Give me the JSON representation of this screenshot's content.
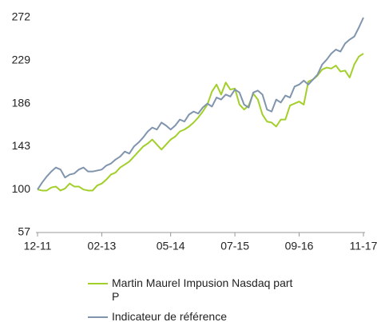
{
  "chart_data": {
    "type": "line",
    "categories": [
      "12-11",
      null,
      null,
      null,
      null,
      null,
      null,
      null,
      null,
      null,
      null,
      null,
      null,
      null,
      "02-13",
      null,
      null,
      null,
      null,
      null,
      null,
      null,
      null,
      null,
      null,
      null,
      null,
      null,
      null,
      "05-14",
      null,
      null,
      null,
      null,
      null,
      null,
      null,
      null,
      null,
      null,
      null,
      null,
      null,
      "07-15",
      null,
      null,
      null,
      null,
      null,
      null,
      null,
      null,
      null,
      null,
      null,
      null,
      null,
      "09-16",
      null,
      null,
      null,
      null,
      null,
      null,
      null,
      null,
      null,
      null,
      null,
      null,
      null,
      "11-17"
    ],
    "series": [
      {
        "name": "Martin Maurel Impusion Nasdaq part P",
        "color": "#a2cf2a",
        "values": [
          100,
          99,
          99,
          102,
          103,
          99,
          101,
          106,
          103,
          103,
          100,
          99,
          99,
          104,
          106,
          110,
          115,
          117,
          122,
          125,
          128,
          133,
          138,
          143,
          146,
          150,
          145,
          140,
          145,
          150,
          153,
          158,
          160,
          163,
          167,
          172,
          178,
          185,
          198,
          205,
          195,
          207,
          200,
          201,
          185,
          180,
          184,
          196,
          190,
          175,
          168,
          167,
          163,
          170,
          170,
          184,
          186,
          188,
          185,
          208,
          210,
          214,
          220,
          222,
          221,
          224,
          218,
          219,
          212,
          225,
          233,
          236
        ]
      },
      {
        "name": "Indicateur de référence",
        "color": "#8095ad",
        "values": [
          100,
          107,
          113,
          118,
          122,
          120,
          112,
          115,
          116,
          120,
          122,
          118,
          118,
          119,
          120,
          124,
          126,
          130,
          133,
          138,
          136,
          143,
          147,
          152,
          158,
          162,
          160,
          167,
          164,
          160,
          164,
          170,
          168,
          175,
          178,
          176,
          182,
          186,
          183,
          192,
          190,
          195,
          193,
          200,
          197,
          185,
          182,
          197,
          199,
          195,
          180,
          178,
          190,
          187,
          194,
          192,
          203,
          205,
          209,
          205,
          210,
          215,
          225,
          230,
          236,
          240,
          238,
          246,
          250,
          253,
          262,
          272
        ]
      }
    ],
    "ylim": [
      57,
      272
    ],
    "yticks": [
      57,
      100,
      143,
      186,
      229,
      272
    ]
  }
}
